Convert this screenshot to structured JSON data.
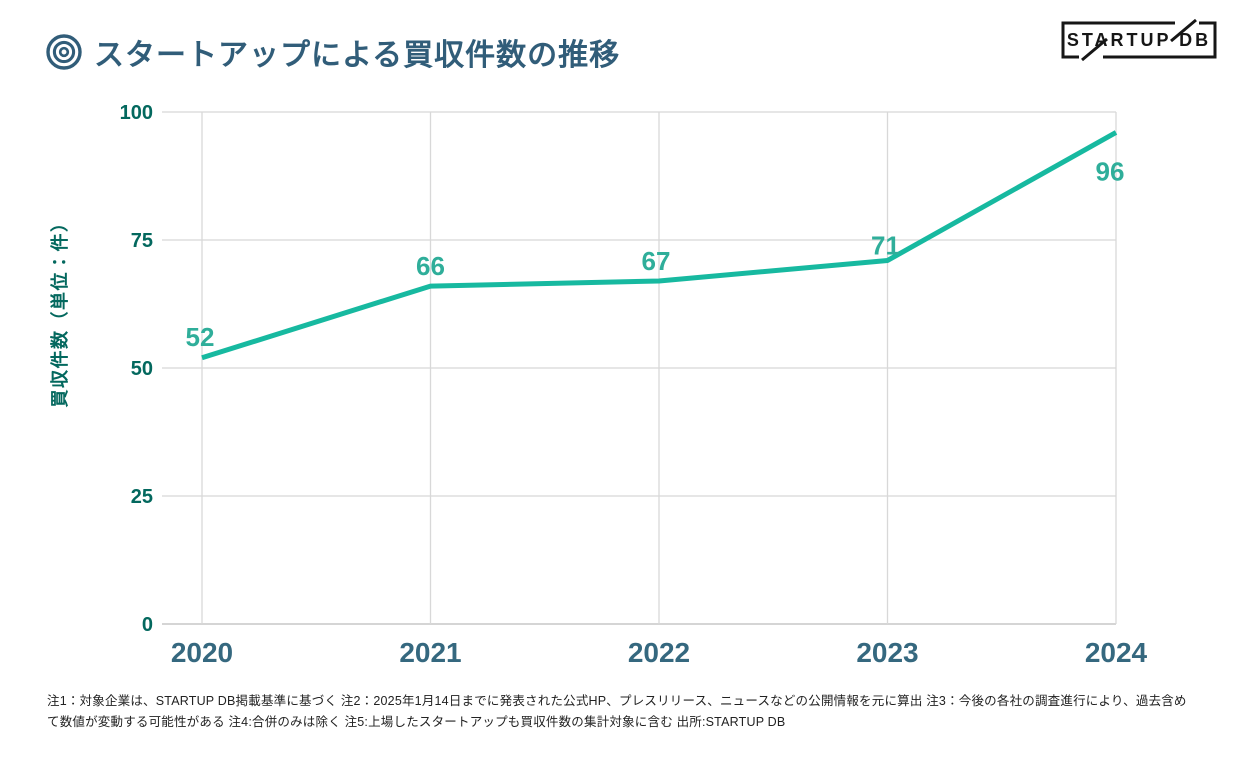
{
  "header": {
    "title": "スタートアップによる買収件数の推移",
    "title_icon": "bullseye-icon",
    "logo_text": "STARTUP DB"
  },
  "chart_data": {
    "type": "line",
    "title": "スタートアップによる買収件数の推移",
    "categories": [
      "2020",
      "2021",
      "2022",
      "2023",
      "2024"
    ],
    "values": [
      52,
      66,
      67,
      71,
      96
    ],
    "xlabel": "",
    "ylabel": "買収件数（単位：件）",
    "ylim": [
      0,
      100
    ],
    "yticks": [
      0,
      25,
      50,
      75,
      100
    ],
    "grid": true,
    "legend": "none",
    "line_color": "#17b9a0",
    "data_label_color": "#2fae9a",
    "y_axis_text_color": "#03685e",
    "x_axis_text_color": "#35687f",
    "grid_color": "#d8d8d8"
  },
  "footer": {
    "notes": "注1：対象企業は、STARTUP DB掲載基準に基づく 注2：2025年1月14日までに発表された公式HP、プレスリリース、ニュースなどの公開情報を元に算出 注3：今後の各社の調査進行により、過去含めて数値が変動する可能性がある 注4:合併のみは除く 注5:上場したスタートアップも買収件数の集計対象に含む 出所:STARTUP DB"
  }
}
